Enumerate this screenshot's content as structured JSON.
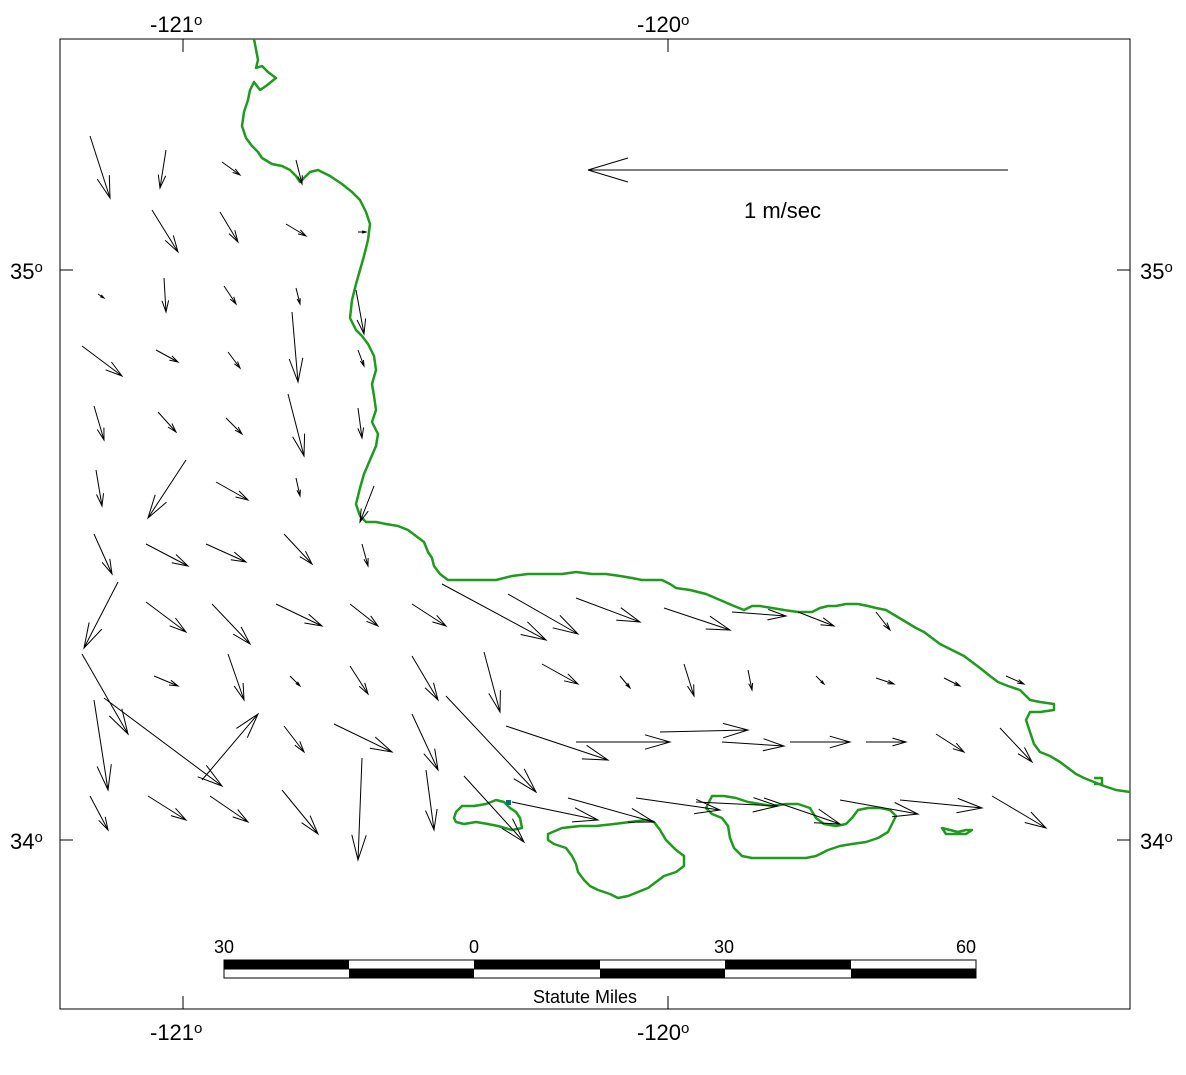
{
  "map": {
    "axes": {
      "top_lon_labels": [
        {
          "value": "-121",
          "suffix": "o"
        },
        {
          "value": "-120",
          "suffix": "o"
        }
      ],
      "bottom_lon_labels": [
        {
          "value": "-121",
          "suffix": "o"
        },
        {
          "value": "-120",
          "suffix": "o"
        }
      ],
      "left_lat_labels": [
        {
          "value": "35",
          "suffix": "o"
        },
        {
          "value": "34",
          "suffix": "o"
        }
      ],
      "right_lat_labels": [
        {
          "value": "35",
          "suffix": "o"
        },
        {
          "value": "34",
          "suffix": "o"
        }
      ]
    },
    "reference_vector": {
      "label": "1 m/sec",
      "magnitude_m_per_s": 1,
      "direction": "west"
    },
    "scale_bar": {
      "labels": [
        "30",
        "0",
        "30",
        "60"
      ],
      "units": "Statute Miles"
    },
    "colors": {
      "coastline": "#1f9a1f",
      "vectors": "#000000",
      "frame": "#000000",
      "island_marker": "#0a6e6e"
    }
  }
}
